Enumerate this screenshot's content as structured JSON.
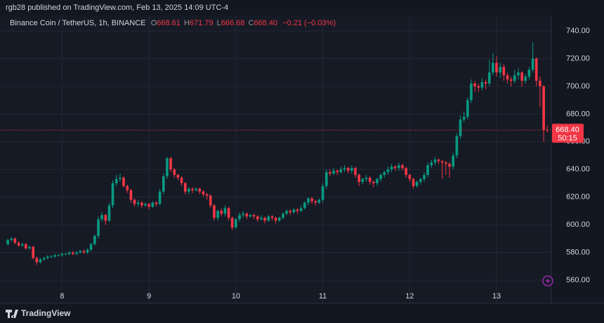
{
  "header": {
    "published": "rgb28 published on TradingView.com, Feb 13, 2025 14:09 UTC-4",
    "symbol": "Binance Coin / TetherUS, 1h, BINANCE",
    "ohlc": [
      {
        "key": "O",
        "value": "668.61"
      },
      {
        "key": "H",
        "value": "671.79"
      },
      {
        "key": "L",
        "value": "666.68"
      },
      {
        "key": "C",
        "value": "668.40"
      }
    ],
    "change": "−0.21 (−0.03%)"
  },
  "footer": {
    "brand": "TradingView"
  },
  "chart_data": {
    "type": "candlestick",
    "up_color": "#089981",
    "down_color": "#f23645",
    "grid": true,
    "xlim": [
      7.35,
      13.63
    ],
    "xticks": [
      8,
      9,
      10,
      11,
      12,
      13
    ],
    "ylim": [
      554.4,
      751.2
    ],
    "yticks": [
      {
        "value": 560,
        "label": "560.00"
      },
      {
        "value": 580,
        "label": "580.00"
      },
      {
        "value": 600,
        "label": "600.00"
      },
      {
        "value": 620,
        "label": "620.00"
      },
      {
        "value": 640,
        "label": "640.00"
      },
      {
        "value": 660,
        "label": "660.00"
      },
      {
        "value": 680,
        "label": "680.00"
      },
      {
        "value": 700,
        "label": "700.00"
      },
      {
        "value": 720,
        "label": "720.00"
      },
      {
        "value": 740,
        "label": "740.00"
      }
    ],
    "last_price": {
      "value": 668.4,
      "label": "668.40"
    },
    "countdown": "50:15",
    "x": [
      7.375,
      7.417,
      7.458,
      7.5,
      7.542,
      7.583,
      7.625,
      7.667,
      7.708,
      7.75,
      7.792,
      7.833,
      7.875,
      7.917,
      7.958,
      8,
      8.042,
      8.083,
      8.125,
      8.167,
      8.208,
      8.25,
      8.292,
      8.333,
      8.375,
      8.417,
      8.458,
      8.5,
      8.542,
      8.583,
      8.625,
      8.667,
      8.708,
      8.75,
      8.792,
      8.833,
      8.875,
      8.917,
      8.958,
      9,
      9.042,
      9.083,
      9.125,
      9.167,
      9.208,
      9.25,
      9.292,
      9.333,
      9.375,
      9.417,
      9.458,
      9.5,
      9.542,
      9.583,
      9.625,
      9.667,
      9.708,
      9.75,
      9.792,
      9.833,
      9.875,
      9.917,
      9.958,
      10,
      10.042,
      10.083,
      10.125,
      10.167,
      10.208,
      10.25,
      10.292,
      10.333,
      10.375,
      10.417,
      10.458,
      10.5,
      10.542,
      10.583,
      10.625,
      10.667,
      10.708,
      10.75,
      10.792,
      10.833,
      10.875,
      10.917,
      10.958,
      11,
      11.042,
      11.083,
      11.125,
      11.167,
      11.208,
      11.25,
      11.292,
      11.333,
      11.375,
      11.417,
      11.458,
      11.5,
      11.542,
      11.583,
      11.625,
      11.667,
      11.708,
      11.75,
      11.792,
      11.833,
      11.875,
      11.917,
      11.958,
      12,
      12.042,
      12.083,
      12.125,
      12.167,
      12.208,
      12.25,
      12.292,
      12.333,
      12.375,
      12.417,
      12.458,
      12.5,
      12.542,
      12.583,
      12.625,
      12.667,
      12.708,
      12.75,
      12.792,
      12.833,
      12.875,
      12.917,
      12.958,
      13,
      13.042,
      13.083,
      13.125,
      13.167,
      13.208,
      13.25,
      13.292,
      13.333,
      13.375,
      13.417,
      13.458,
      13.5,
      13.542,
      13.583
    ],
    "open": [
      586,
      589,
      590,
      587,
      585,
      586,
      583,
      584,
      576,
      573,
      575,
      576,
      577,
      577,
      578,
      578,
      579,
      579,
      580,
      579,
      580,
      581,
      580,
      582,
      586,
      592,
      604,
      607,
      603,
      614,
      630,
      633,
      634,
      628,
      625,
      618,
      615,
      616,
      614,
      615,
      613,
      616,
      615,
      624,
      635,
      648,
      640,
      636,
      634,
      630,
      624,
      626,
      625,
      626,
      624,
      622,
      621,
      614,
      605,
      610,
      608,
      612,
      605,
      598,
      604,
      607,
      608,
      606,
      607,
      606,
      604,
      605,
      603,
      606,
      605,
      603,
      605,
      608,
      610,
      609,
      611,
      610,
      612,
      616,
      619,
      617,
      616,
      618,
      628,
      638,
      637,
      639,
      638,
      640,
      641,
      639,
      641,
      636,
      631,
      633,
      634,
      631,
      630,
      633,
      636,
      638,
      640,
      642,
      641,
      643,
      641,
      636,
      633,
      628,
      631,
      633,
      636,
      643,
      645,
      647,
      646,
      645,
      644,
      642,
      650,
      664,
      676,
      678,
      690,
      702,
      700,
      699,
      703,
      702,
      710,
      717,
      710,
      714,
      708,
      705,
      704,
      708,
      710,
      704,
      707,
      712,
      720,
      704,
      700,
      668.61
    ],
    "high": [
      590,
      591,
      591,
      588,
      587,
      587,
      585,
      585,
      577,
      576,
      577,
      578,
      578,
      579,
      579,
      580,
      580,
      581,
      581,
      581,
      582,
      582,
      583,
      587,
      593,
      606,
      609,
      608,
      616,
      632,
      636,
      637,
      635,
      629,
      626,
      619,
      618,
      617,
      616,
      616,
      617,
      617,
      626,
      637,
      649,
      649,
      641,
      637,
      635,
      631,
      627,
      627,
      627,
      627,
      625,
      623,
      622,
      615,
      611,
      612,
      614,
      613,
      606,
      605,
      609,
      610,
      609,
      608,
      608,
      607,
      607,
      606,
      607,
      607,
      606,
      606,
      609,
      611,
      611,
      612,
      612,
      614,
      617,
      620,
      620,
      618,
      619,
      630,
      640,
      640,
      641,
      640,
      642,
      643,
      642,
      643,
      642,
      637,
      634,
      636,
      635,
      632,
      634,
      637,
      639,
      642,
      644,
      643,
      645,
      644,
      642,
      637,
      634,
      632,
      634,
      638,
      645,
      647,
      649,
      648,
      647,
      646,
      645,
      652,
      666,
      679,
      682,
      692,
      705,
      704,
      702,
      706,
      705,
      719,
      724,
      722,
      717,
      716,
      710,
      707,
      712,
      713,
      711,
      709,
      714,
      732,
      721,
      707,
      701,
      671.79
    ],
    "low": [
      585,
      588,
      586,
      584,
      584,
      582,
      582,
      575,
      571,
      572,
      574,
      575,
      576,
      576,
      577,
      577,
      578,
      578,
      578,
      578,
      579,
      579,
      579,
      581,
      585,
      590,
      602,
      600,
      602,
      612,
      628,
      631,
      627,
      623,
      616,
      613,
      613,
      612,
      613,
      611,
      612,
      613,
      614,
      622,
      633,
      638,
      634,
      632,
      628,
      622,
      622,
      623,
      624,
      622,
      620,
      618,
      612,
      603,
      603,
      606,
      606,
      603,
      596,
      597,
      602,
      605,
      604,
      605,
      604,
      602,
      603,
      601,
      602,
      603,
      601,
      602,
      604,
      607,
      607,
      608,
      608,
      609,
      611,
      614,
      615,
      614,
      615,
      616,
      626,
      635,
      636,
      636,
      637,
      638,
      637,
      637,
      634,
      628,
      629,
      631,
      629,
      627,
      628,
      631,
      634,
      636,
      638,
      639,
      639,
      639,
      634,
      631,
      626,
      627,
      629,
      631,
      634,
      641,
      643,
      644,
      633,
      636,
      634,
      640,
      648,
      662,
      674,
      676,
      688,
      696,
      696,
      697,
      698,
      700,
      708,
      707,
      706,
      704,
      702,
      700,
      702,
      705,
      700,
      702,
      705,
      710,
      700,
      685,
      660,
      666.68
    ],
    "close": [
      589,
      590,
      587,
      585,
      586,
      583,
      584,
      576,
      573,
      575,
      576,
      577,
      577,
      578,
      578,
      579,
      579,
      580,
      579,
      580,
      581,
      580,
      582,
      586,
      592,
      604,
      607,
      603,
      614,
      630,
      633,
      634,
      628,
      625,
      618,
      615,
      616,
      614,
      615,
      613,
      616,
      615,
      624,
      635,
      648,
      640,
      636,
      634,
      630,
      624,
      626,
      625,
      626,
      624,
      622,
      621,
      614,
      605,
      610,
      608,
      612,
      605,
      598,
      604,
      607,
      608,
      606,
      607,
      606,
      604,
      605,
      603,
      606,
      605,
      603,
      605,
      608,
      610,
      609,
      611,
      610,
      612,
      616,
      619,
      617,
      616,
      618,
      628,
      638,
      637,
      639,
      638,
      640,
      641,
      639,
      641,
      636,
      631,
      633,
      634,
      631,
      630,
      633,
      636,
      638,
      640,
      642,
      641,
      643,
      641,
      636,
      633,
      628,
      631,
      633,
      636,
      643,
      645,
      647,
      646,
      645,
      644,
      642,
      650,
      664,
      676,
      678,
      690,
      702,
      700,
      699,
      703,
      702,
      710,
      717,
      710,
      714,
      708,
      705,
      704,
      708,
      710,
      704,
      707,
      712,
      720,
      704,
      700,
      668.61,
      668.4
    ]
  }
}
